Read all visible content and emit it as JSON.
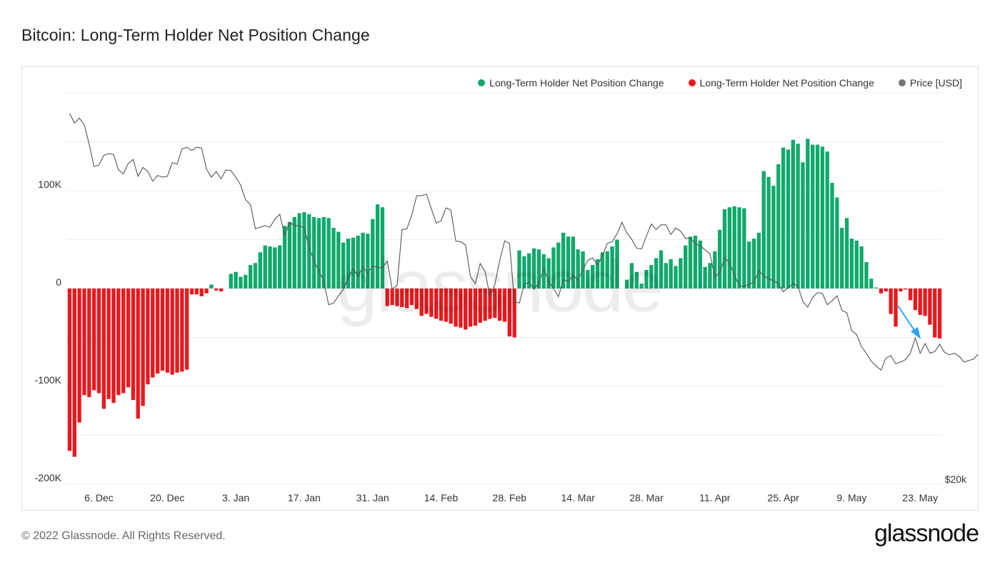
{
  "page": {
    "title": "Bitcoin: Long-Term Holder Net Position Change",
    "footer": "© 2022 Glassnode. All Rights Reserved.",
    "brand": "glassnode",
    "watermark": "glassnode"
  },
  "legend": [
    {
      "label": "Long-Term Holder Net Position Change",
      "color": "#10a86b"
    },
    {
      "label": "Long-Term Holder Net Position Change",
      "color": "#e8191e"
    },
    {
      "label": "Price [USD]",
      "color": "#777777"
    }
  ],
  "annotation": {
    "type": "arrow",
    "color": "#2aa3ff"
  },
  "chart_data": {
    "type": "bar",
    "title": "Bitcoin: Long-Term Holder Net Position Change",
    "y_ticks": [
      "100K",
      "0",
      "-100K",
      "-200K"
    ],
    "y_ticks_values": [
      100000,
      0,
      -100000,
      -200000
    ],
    "ylim": [
      -200000,
      200000
    ],
    "right_axis_label": "$20k",
    "x_tick_labels": [
      "6. Dec",
      "20. Dec",
      "3. Jan",
      "17. Jan",
      "31. Jan",
      "14. Feb",
      "28. Feb",
      "14. Mar",
      "28. Mar",
      "11. Apr",
      "25. Apr",
      "9. May",
      "23. May"
    ],
    "x_tick_indices": [
      6,
      20,
      34,
      48,
      62,
      76,
      90,
      104,
      118,
      132,
      146,
      160,
      174
    ],
    "positive_color": "#10a86b",
    "negative_color": "#e8191e",
    "series": [
      {
        "name": "Long-Term Holder Net Position Change",
        "unit": "BTC",
        "values": [
          -166000,
          -172000,
          -137000,
          -109000,
          -111000,
          -104000,
          -107000,
          -123000,
          -113000,
          -117000,
          -109000,
          -107000,
          -101000,
          -114000,
          -133000,
          -120000,
          -98000,
          -91000,
          -87000,
          -84000,
          -86000,
          -88000,
          -86000,
          -85000,
          -83000,
          -6000,
          -6000,
          -8000,
          -5000,
          4000,
          -2000,
          -3000,
          0,
          15000,
          17000,
          12000,
          14000,
          24000,
          26000,
          37000,
          44000,
          43000,
          42000,
          44000,
          64000,
          68000,
          73000,
          77000,
          78000,
          76000,
          73000,
          72000,
          73000,
          72000,
          62000,
          58000,
          47000,
          51000,
          52000,
          54000,
          57000,
          56000,
          71000,
          86000,
          83000,
          -18000,
          -17000,
          -18000,
          -19000,
          -20000,
          -17000,
          -21000,
          -28000,
          -26000,
          -29000,
          -31000,
          -33000,
          -34000,
          -36000,
          -39000,
          -40000,
          -42000,
          -39000,
          -38000,
          -35000,
          -33000,
          -31000,
          -30000,
          -33000,
          -34000,
          -49000,
          -50000,
          39000,
          33000,
          36000,
          41000,
          40000,
          35000,
          31000,
          42000,
          47000,
          57000,
          53000,
          53000,
          40000,
          38000,
          19000,
          24000,
          30000,
          37000,
          38000,
          43000,
          50000,
          0,
          9000,
          26000,
          17000,
          5000,
          19000,
          24000,
          31000,
          39000,
          26000,
          30000,
          23000,
          31000,
          44000,
          53000,
          54000,
          49000,
          22000,
          26000,
          38000,
          60000,
          81000,
          83000,
          84000,
          83000,
          82000,
          48000,
          51000,
          57000,
          120000,
          114000,
          105000,
          127000,
          144000,
          142000,
          152000,
          148000,
          129000,
          153000,
          147000,
          147000,
          145000,
          140000,
          108000,
          93000,
          62000,
          72000,
          51000,
          49000,
          43000,
          27000,
          10000,
          1000,
          -5000,
          -3000,
          -26000,
          -39000,
          -3000,
          -1000,
          -12000,
          -22000,
          -27000,
          -28000,
          -37000,
          -50000,
          -51000
        ]
      },
      {
        "name": "Price [USD]",
        "unit": "USD",
        "values": [
          62000,
          60800,
          61400,
          60600,
          58200,
          55400,
          55600,
          56800,
          57000,
          56900,
          55000,
          54500,
          55800,
          56300,
          54200,
          55300,
          54800,
          53600,
          54300,
          54100,
          54200,
          55900,
          55700,
          57600,
          57800,
          57400,
          57800,
          57700,
          55100,
          54100,
          54800,
          53900,
          55000,
          54900,
          54100,
          53100,
          51300,
          50700,
          47700,
          47900,
          48100,
          47900,
          48900,
          49500,
          46900,
          48500,
          48100,
          48100,
          47800,
          45400,
          43700,
          42500,
          41200,
          38300,
          38500,
          39400,
          40200,
          41600,
          42800,
          41800,
          43000,
          42200,
          43100,
          42900,
          42900,
          43700,
          40200,
          40700,
          47600,
          47700,
          49400,
          51800,
          51800,
          52000,
          50200,
          48400,
          48700,
          50300,
          50000,
          46200,
          46100,
          45700,
          41800,
          40900,
          43400,
          42400,
          39300,
          40800,
          43800,
          46200,
          45900,
          38700,
          38500,
          40800,
          41100,
          40200,
          41000,
          42800,
          41200,
          40300,
          39300,
          41400,
          41200,
          41900,
          41400,
          42600,
          43800,
          44100,
          43200,
          44400,
          45900,
          46100,
          47100,
          48500,
          47200,
          46400,
          45300,
          45200,
          46800,
          48300,
          47600,
          48200,
          48200,
          47000,
          47800,
          47400,
          46500,
          46600,
          45800,
          45600,
          45100,
          44600,
          41700,
          42300,
          44100,
          43500,
          42000,
          40600,
          40600,
          40800,
          41100,
          42500,
          41900,
          41500,
          41300,
          40900,
          39900,
          40400,
          40900,
          40600,
          38700,
          38000,
          39200,
          39800,
          39700,
          38300,
          38800,
          39400,
          37600,
          37300,
          35100,
          34600,
          33100,
          32300,
          31300,
          30700,
          30200,
          31700,
          32000,
          31000,
          31200,
          31500,
          32300,
          34200,
          32300,
          33500,
          32300,
          32500,
          33400,
          32400,
          32100,
          32300,
          31900,
          31200,
          31400,
          31600,
          32300,
          32500,
          33200
        ]
      }
    ],
    "price_axis_range": [
      16700,
      63300
    ]
  }
}
